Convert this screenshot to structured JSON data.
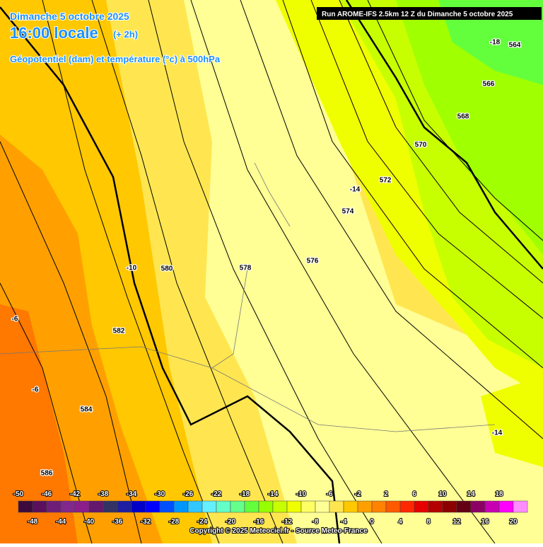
{
  "header": {
    "date": "Dimanche 5 octobre 2025",
    "time": "16:00 locale",
    "offset": "(+ 2h)",
    "subtitle": "Géopotentiel (dam) et température (°c) à 500hPa",
    "run": "Run AROME-IFS 2.5km 12 Z du Dimanche 5 octobre 2025"
  },
  "map": {
    "contour_labels": [
      "564",
      "566",
      "568",
      "570",
      "572",
      "574",
      "576",
      "578",
      "580",
      "582",
      "584",
      "586"
    ],
    "temperature_labels": [
      "-18",
      "-14",
      "-10",
      "-6",
      "-6",
      "-14"
    ]
  },
  "legend": {
    "items": [
      {
        "value": -50,
        "color": "#3c0a3c"
      },
      {
        "value": -48,
        "color": "#5a105a"
      },
      {
        "value": -46,
        "color": "#6e1e78"
      },
      {
        "value": -44,
        "color": "#82288c"
      },
      {
        "value": -42,
        "color": "#8c1e8c"
      },
      {
        "value": -40,
        "color": "#64186e"
      },
      {
        "value": -38,
        "color": "#323264"
      },
      {
        "value": -36,
        "color": "#1e1ea0"
      },
      {
        "value": -34,
        "color": "#0000c8"
      },
      {
        "value": -32,
        "color": "#0000ff"
      },
      {
        "value": -30,
        "color": "#0050ff"
      },
      {
        "value": -28,
        "color": "#0096ff"
      },
      {
        "value": -26,
        "color": "#32c8ff"
      },
      {
        "value": -24,
        "color": "#64f0ff"
      },
      {
        "value": -22,
        "color": "#64ffc8"
      },
      {
        "value": -20,
        "color": "#64ff8c"
      },
      {
        "value": -18,
        "color": "#64ff3c"
      },
      {
        "value": -16,
        "color": "#96ff00"
      },
      {
        "value": -14,
        "color": "#c8ff00"
      },
      {
        "value": -12,
        "color": "#f0ff00"
      },
      {
        "value": -10,
        "color": "#ffff64"
      },
      {
        "value": -8,
        "color": "#ffff96"
      },
      {
        "value": -6,
        "color": "#ffe650"
      },
      {
        "value": -4,
        "color": "#ffc800"
      },
      {
        "value": -2,
        "color": "#ffa000"
      },
      {
        "value": 0,
        "color": "#ff8200"
      },
      {
        "value": 2,
        "color": "#ff5a00"
      },
      {
        "value": 4,
        "color": "#ff2800"
      },
      {
        "value": 6,
        "color": "#e60000"
      },
      {
        "value": 8,
        "color": "#b40000"
      },
      {
        "value": 10,
        "color": "#8c0000"
      },
      {
        "value": 12,
        "color": "#640014"
      },
      {
        "value": 14,
        "color": "#8c0064"
      },
      {
        "value": 16,
        "color": "#c800b4"
      },
      {
        "value": 18,
        "color": "#ff00ff"
      },
      {
        "value": 20,
        "color": "#ff8cff"
      }
    ]
  },
  "footer": "Copyright © 2025 Meteociel.fr - Source Meteo-France"
}
